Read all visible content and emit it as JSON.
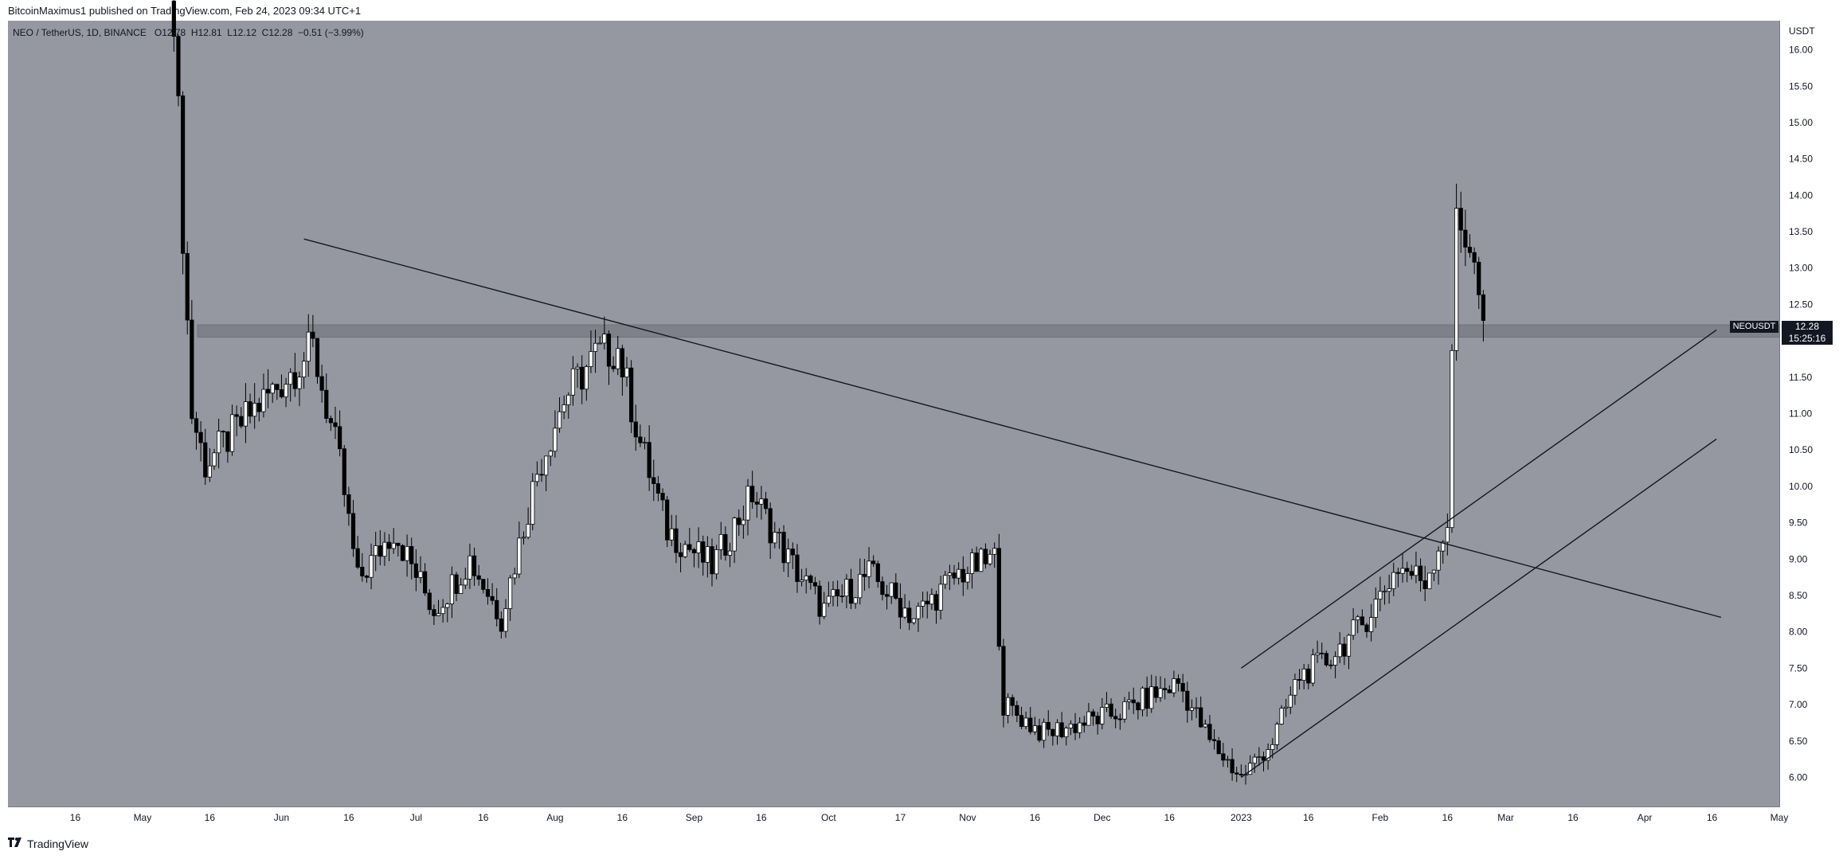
{
  "header": {
    "publisher_line": "BitcoinMaximus1 published on TradingView.com, Feb 24, 2023 09:34 UTC+1"
  },
  "legend": {
    "symbol_line": "NEO / TetherUS, 1D, BINANCE",
    "open_label": "O",
    "open_value": "12.78",
    "high_label": "H",
    "high_value": "12.81",
    "low_label": "L",
    "low_value": "12.12",
    "close_label": "C",
    "close_value": "12.28",
    "change": "−0.51 (−3.99%)"
  },
  "price_tag": {
    "symbol": "NEOUSDT",
    "price": "12.28",
    "countdown": "15:25:16"
  },
  "footer": {
    "brand": "TradingView"
  },
  "colors": {
    "background": "#9598a1",
    "candle_up": "#ffffff",
    "candle_down": "#000000",
    "zone": "#7c7f88"
  },
  "chart_data": {
    "type": "candlestick",
    "unit": "USDT",
    "ylim": [
      5.6,
      16.4
    ],
    "y_ticks": [
      "6.00",
      "6.50",
      "7.00",
      "7.50",
      "8.00",
      "8.50",
      "9.00",
      "9.50",
      "10.00",
      "10.50",
      "11.00",
      "11.50",
      "12.00",
      "12.50",
      "13.00",
      "13.50",
      "14.00",
      "14.50",
      "15.00",
      "15.50",
      "16.00"
    ],
    "x_ticks": [
      "16",
      "May",
      "16",
      "Jun",
      "16",
      "Jul",
      "16",
      "Aug",
      "16",
      "Sep",
      "16",
      "Oct",
      "17",
      "Nov",
      "16",
      "Dec",
      "16",
      "2023",
      "16",
      "Feb",
      "16",
      "Mar",
      "16",
      "Apr",
      "16",
      "May"
    ],
    "x_range": [
      "2022-04-01",
      "2023-05-01"
    ],
    "price_anchors": [
      [
        "2022-05-08",
        16.6
      ],
      [
        "2022-05-10",
        13.5
      ],
      [
        "2022-05-12",
        11.0
      ],
      [
        "2022-05-15",
        10.3
      ],
      [
        "2022-05-25",
        11.0
      ],
      [
        "2022-06-02",
        11.5
      ],
      [
        "2022-06-08",
        11.9
      ],
      [
        "2022-06-14",
        10.3
      ],
      [
        "2022-06-18",
        8.7
      ],
      [
        "2022-06-26",
        9.4
      ],
      [
        "2022-07-05",
        8.3
      ],
      [
        "2022-07-13",
        9.0
      ],
      [
        "2022-07-20",
        8.2
      ],
      [
        "2022-07-28",
        10.2
      ],
      [
        "2022-08-03",
        11.2
      ],
      [
        "2022-08-10",
        11.8
      ],
      [
        "2022-08-15",
        11.9
      ],
      [
        "2022-08-20",
        10.6
      ],
      [
        "2022-08-26",
        9.4
      ],
      [
        "2022-09-05",
        8.9
      ],
      [
        "2022-09-14",
        9.9
      ],
      [
        "2022-09-22",
        9.0
      ],
      [
        "2022-09-30",
        8.3
      ],
      [
        "2022-10-10",
        8.8
      ],
      [
        "2022-10-20",
        8.2
      ],
      [
        "2022-10-30",
        8.8
      ],
      [
        "2022-11-07",
        9.0
      ],
      [
        "2022-11-09",
        7.0
      ],
      [
        "2022-11-18",
        6.6
      ],
      [
        "2022-12-05",
        6.9
      ],
      [
        "2022-12-18",
        7.3
      ],
      [
        "2022-12-25",
        6.5
      ],
      [
        "2023-01-01",
        6.0
      ],
      [
        "2023-01-08",
        6.5
      ],
      [
        "2023-01-14",
        7.4
      ],
      [
        "2023-01-20",
        7.6
      ],
      [
        "2023-01-28",
        8.1
      ],
      [
        "2023-02-05",
        8.9
      ],
      [
        "2023-02-11",
        8.7
      ],
      [
        "2023-02-16",
        9.5
      ],
      [
        "2023-02-18",
        13.8
      ],
      [
        "2023-02-21",
        13.3
      ],
      [
        "2023-02-24",
        12.28
      ]
    ],
    "horizontal_zone": [
      12.05,
      12.22
    ],
    "trendlines": [
      {
        "name": "descending resistance",
        "points": [
          [
            "2022-06-06",
            13.4
          ],
          [
            "2023-04-18",
            8.2
          ]
        ]
      },
      {
        "name": "channel upper",
        "points": [
          [
            "2023-01-01",
            7.5
          ],
          [
            "2023-04-17",
            12.15
          ]
        ]
      },
      {
        "name": "channel lower",
        "points": [
          [
            "2023-01-01",
            6.0
          ],
          [
            "2023-04-17",
            10.65
          ]
        ]
      }
    ]
  }
}
